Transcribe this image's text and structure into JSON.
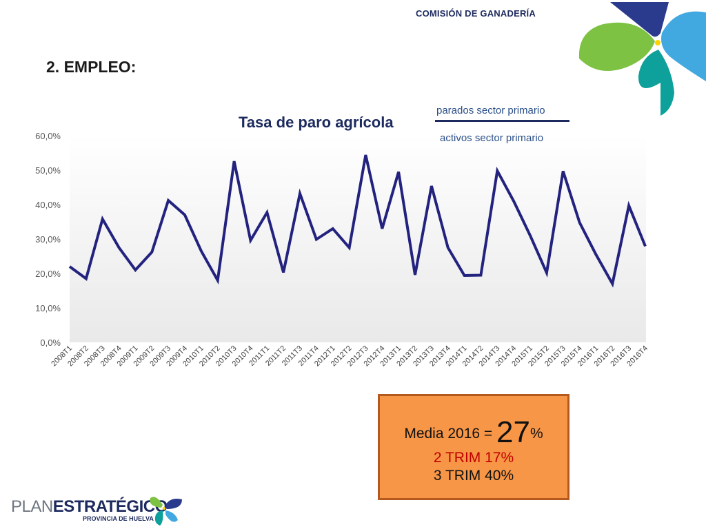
{
  "header": {
    "commission": "COMISIÓN DE GANADERÍA"
  },
  "section": {
    "heading": "2. EMPLEO:"
  },
  "formula": {
    "numerator": "parados sector primario",
    "denominator": "activos sector primario"
  },
  "media_box": {
    "line1_prefix": "Media 2016 = ",
    "line1_value": "27",
    "line1_suffix": "%",
    "line2": "2 TRIM  17%",
    "line3": "3 TRIM 40%"
  },
  "logo": {
    "plan": "PLAN",
    "estrategico": "ESTRATÉGICO",
    "subtitle": "PROVINCIA DE HUELVA"
  },
  "colors": {
    "line": "#23237f",
    "box_fill": "#f79646",
    "box_border": "#b55a1e",
    "highlight_text": "#c00000",
    "brand_navy": "#1c2a5e"
  },
  "chart_data": {
    "type": "line",
    "title": "Tasa de paro agrícola",
    "xlabel": "",
    "ylabel": "",
    "ylim": [
      0,
      60
    ],
    "grid": false,
    "yticks": [
      "0,0%",
      "10,0%",
      "20,0%",
      "30,0%",
      "40,0%",
      "50,0%",
      "60,0%"
    ],
    "categories": [
      "2008T1",
      "2008T2",
      "2008T3",
      "2008T4",
      "2009T1",
      "2009T2",
      "2009T3",
      "2009T4",
      "2010T1",
      "2010T2",
      "2010T3",
      "2010T4",
      "2011T1",
      "2011T2",
      "2011T3",
      "2011T4",
      "2012T1",
      "2012T2",
      "2012T3",
      "2012T4",
      "2013T1",
      "2013T2",
      "2013T3",
      "2013T4",
      "2014T1",
      "2014T2",
      "2014T3",
      "2014T4",
      "2015T1",
      "2015T2",
      "2015T3",
      "2015T4",
      "2016T1",
      "2016T2",
      "2016T3",
      "2016T4"
    ],
    "series": [
      {
        "values": [
          22.0,
          18.5,
          35.8,
          27.5,
          21.0,
          26.2,
          41.2,
          37.0,
          26.5,
          18.0,
          52.6,
          29.6,
          37.7,
          20.3,
          43.2,
          29.9,
          33.0,
          27.5,
          54.4,
          33.0,
          49.5,
          19.6,
          45.4,
          27.5,
          19.4,
          19.5,
          49.8,
          41.0,
          31.0,
          20.2,
          49.7,
          34.8,
          25.5,
          17.0,
          39.7,
          27.9
        ]
      }
    ]
  }
}
